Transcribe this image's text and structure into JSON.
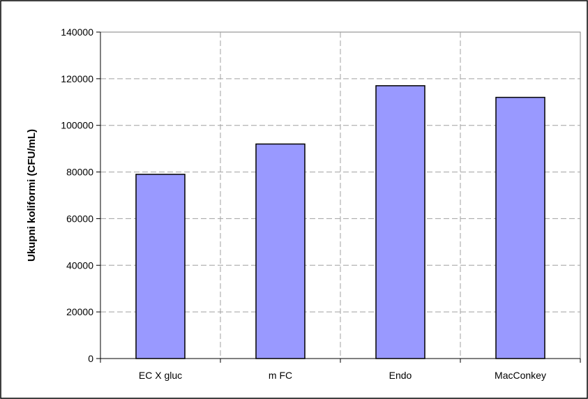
{
  "chart_data": {
    "type": "bar",
    "title": "",
    "xlabel": "",
    "ylabel": "Ukupni koliformi (CFU/mL)",
    "categories": [
      "EC X gluc",
      "m FC",
      "Endo",
      "MacConkey"
    ],
    "values": [
      79000,
      92000,
      117000,
      112000
    ],
    "ylim": [
      0,
      140000
    ],
    "yticks": [
      "0",
      "20000",
      "40000",
      "60000",
      "80000",
      "100000",
      "120000",
      "140000"
    ],
    "grid": true,
    "legend": "none",
    "bar_color": "#9999ff",
    "bar_edge_color": "#000000"
  }
}
